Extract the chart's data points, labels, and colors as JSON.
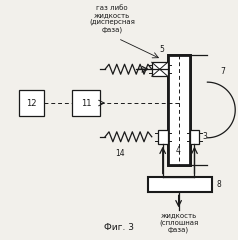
{
  "bg_color": "#f2f0eb",
  "line_color": "#1a1a1a",
  "title": "Фиг. 3",
  "label_gas": "газ либо\nжидкость\n(дисперсная\nфаза)",
  "label_liquid": "жидкость\n(сплошная\nфаза)"
}
